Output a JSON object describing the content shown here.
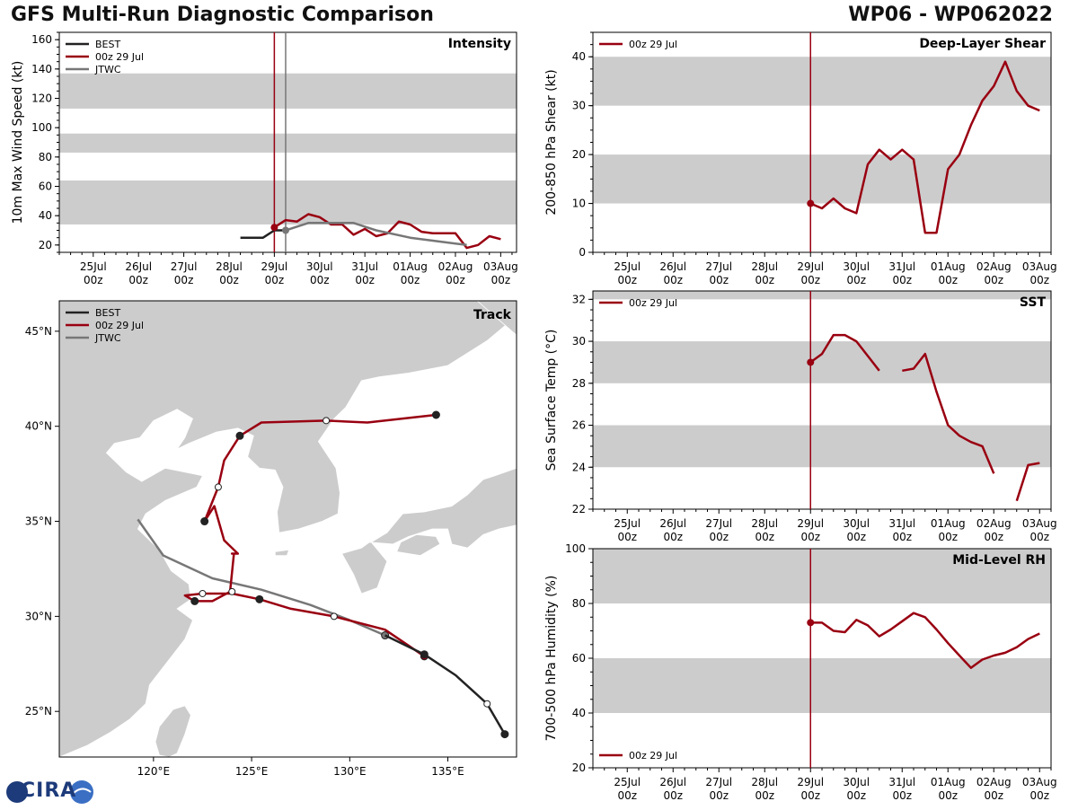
{
  "title_left": "GFS Multi-Run Diagnostic Comparison",
  "title_right": "WP06 - WP062022",
  "logo_text": "CIRA",
  "colors": {
    "best": "#222222",
    "run": "#990011",
    "jtwc": "#777777",
    "band": "#cccccc",
    "land": "#cccccc"
  },
  "chart_data": [
    {
      "id": "intensity",
      "type": "line",
      "title": "Intensity",
      "ylabel": "10m Max Wind Speed (kt)",
      "ylim": [
        15,
        165
      ],
      "yticks": [
        20,
        40,
        60,
        80,
        100,
        120,
        140,
        160
      ],
      "x_range": [
        -4.75,
        5.35
      ],
      "x_tick_dates": [
        "25Jul",
        "26Jul",
        "27Jul",
        "28Jul",
        "29Jul",
        "30Jul",
        "31Jul",
        "01Aug",
        "02Aug",
        "03Aug"
      ],
      "x_tick_hours": [
        "00z",
        "00z",
        "00z",
        "00z",
        "00z",
        "00z",
        "00z",
        "00z",
        "00z",
        "00z"
      ],
      "bands": [
        [
          34,
          64
        ],
        [
          83,
          96
        ],
        [
          113,
          137
        ]
      ],
      "vlines": [
        {
          "x": 0,
          "series": "run"
        },
        {
          "x": 0.25,
          "series": "jtwc"
        }
      ],
      "legend": [
        "BEST",
        "00z 29 Jul",
        "JTWC"
      ],
      "series": [
        {
          "name": "BEST",
          "key": "best",
          "x": [
            -0.75,
            -0.5,
            -0.25,
            0,
            0.25
          ],
          "y": [
            25,
            25,
            25,
            30,
            30
          ]
        },
        {
          "name": "00z 29 Jul",
          "key": "run",
          "x": [
            0,
            0.25,
            0.5,
            0.75,
            1,
            1.25,
            1.5,
            1.75,
            2,
            2.25,
            2.5,
            2.75,
            3,
            3.25,
            3.5,
            3.75,
            4,
            4.25,
            4.5,
            4.75,
            5
          ],
          "y": [
            32,
            37,
            36,
            41,
            39,
            34,
            34,
            27,
            31,
            26,
            28,
            36,
            34,
            29,
            28,
            28,
            28,
            18,
            20,
            26,
            24
          ],
          "marker_first": true
        },
        {
          "name": "JTWC",
          "key": "jtwc",
          "x": [
            0.25,
            0.75,
            1.25,
            1.75,
            2.25,
            3,
            3.75,
            4.25
          ],
          "y": [
            30,
            35,
            35,
            35,
            30,
            25,
            22,
            20
          ],
          "marker_first": true
        }
      ]
    },
    {
      "id": "shear",
      "type": "line",
      "title": "Deep-Layer Shear",
      "ylabel": "200-850 hPa Shear (kt)",
      "ylim": [
        0,
        45
      ],
      "yticks": [
        0,
        10,
        20,
        30,
        40
      ],
      "x_range": [
        -4.75,
        5.25
      ],
      "x_tick_dates": [
        "25Jul",
        "26Jul",
        "27Jul",
        "28Jul",
        "29Jul",
        "30Jul",
        "31Jul",
        "01Aug",
        "02Aug",
        "03Aug"
      ],
      "x_tick_hours": [
        "00z",
        "00z",
        "00z",
        "00z",
        "00z",
        "00z",
        "00z",
        "00z",
        "00z",
        "00z"
      ],
      "bands": [
        [
          10,
          20
        ],
        [
          30,
          40
        ]
      ],
      "vlines": [
        {
          "x": 0,
          "series": "run"
        }
      ],
      "legend": [
        "00z 29 Jul"
      ],
      "series": [
        {
          "name": "00z 29 Jul",
          "key": "run",
          "x": [
            0,
            0.25,
            0.5,
            0.75,
            1,
            1.25,
            1.5,
            1.75,
            2,
            2.25,
            2.5,
            2.75,
            3,
            3.25,
            3.5,
            3.75,
            4,
            4.25,
            4.5,
            4.75,
            5
          ],
          "y": [
            10,
            9,
            11,
            9,
            8,
            18,
            21,
            19,
            21,
            19,
            4,
            4,
            17,
            20,
            26,
            31,
            34,
            39,
            33,
            30,
            29
          ],
          "marker_first": true
        }
      ]
    },
    {
      "id": "sst",
      "type": "line",
      "title": "SST",
      "ylabel": "Sea Surface Temp (°C)",
      "ylim": [
        22,
        32.4
      ],
      "yticks": [
        22,
        24,
        26,
        28,
        30,
        32
      ],
      "x_range": [
        -4.75,
        5.25
      ],
      "x_tick_dates": [
        "25Jul",
        "26Jul",
        "27Jul",
        "28Jul",
        "29Jul",
        "30Jul",
        "31Jul",
        "01Aug",
        "02Aug",
        "03Aug"
      ],
      "x_tick_hours": [
        "00z",
        "00z",
        "00z",
        "00z",
        "00z",
        "00z",
        "00z",
        "00z",
        "00z",
        "00z"
      ],
      "bands": [
        [
          24,
          26
        ],
        [
          28,
          30
        ],
        [
          32,
          33
        ]
      ],
      "vlines": [
        {
          "x": 0,
          "series": "run"
        }
      ],
      "legend": [
        "00z 29 Jul"
      ],
      "series": [
        {
          "name": "00z 29 Jul",
          "key": "run",
          "segments": [
            {
              "x": [
                0,
                0.25,
                0.5,
                0.75,
                1,
                1.25,
                1.5
              ],
              "y": [
                29,
                29.4,
                30.3,
                30.3,
                30,
                29.3,
                28.6
              ]
            },
            {
              "x": [
                2,
                2.25,
                2.5,
                2.75,
                3,
                3.25,
                3.5,
                3.75,
                4
              ],
              "y": [
                28.6,
                28.7,
                29.4,
                27.6,
                26,
                25.5,
                25.2,
                25,
                23.7
              ]
            },
            {
              "x": [
                4.5,
                4.75,
                5
              ],
              "y": [
                22.4,
                24.1,
                24.2
              ]
            }
          ],
          "marker_first": true
        }
      ]
    },
    {
      "id": "rh",
      "type": "line",
      "title": "Mid-Level RH",
      "ylabel": "700-500 hPa Humidity (%)",
      "ylim": [
        20,
        100
      ],
      "yticks": [
        20,
        40,
        60,
        80,
        100
      ],
      "x_range": [
        -4.75,
        5.25
      ],
      "x_tick_dates": [
        "25Jul",
        "26Jul",
        "27Jul",
        "28Jul",
        "29Jul",
        "30Jul",
        "31Jul",
        "01Aug",
        "02Aug",
        "03Aug"
      ],
      "x_tick_hours": [
        "00z",
        "00z",
        "00z",
        "00z",
        "00z",
        "00z",
        "00z",
        "00z",
        "00z",
        "00z"
      ],
      "bands": [
        [
          40,
          60
        ],
        [
          80,
          100
        ]
      ],
      "vlines": [
        {
          "x": 0,
          "series": "run"
        }
      ],
      "legend": [
        "00z 29 Jul"
      ],
      "legend_position": "bottom-left",
      "series": [
        {
          "name": "00z 29 Jul",
          "key": "run",
          "x": [
            0,
            0.25,
            0.5,
            0.75,
            1,
            1.25,
            1.5,
            1.75,
            2,
            2.25,
            2.5,
            2.75,
            3,
            3.25,
            3.5,
            3.75,
            4,
            4.25,
            4.5,
            4.75,
            5
          ],
          "y": [
            73,
            73,
            70,
            69.5,
            74,
            72,
            68,
            70.5,
            73.5,
            76.5,
            75,
            70.5,
            65.5,
            61,
            56.5,
            59.5,
            61,
            62,
            64,
            67,
            69
          ],
          "marker_first": true
        }
      ]
    },
    {
      "id": "track",
      "type": "scatter",
      "title": "Track",
      "xlabel": "Longitude",
      "ylabel": "Latitude",
      "xlim": [
        115.2,
        138.5
      ],
      "ylim": [
        22.6,
        46.6
      ],
      "xticks": [
        120,
        125,
        130,
        135
      ],
      "xtick_labels": [
        "120°E",
        "125°E",
        "130°E",
        "135°E"
      ],
      "yticks": [
        25,
        30,
        35,
        40,
        45
      ],
      "ytick_labels": [
        "25°N",
        "30°N",
        "35°N",
        "40°N",
        "45°N"
      ],
      "legend": [
        "BEST",
        "00z 29 Jul",
        "JTWC"
      ],
      "series": [
        {
          "name": "BEST",
          "key": "best",
          "lon": [
            137.9,
            137.0,
            135.4,
            133.8,
            131.8
          ],
          "lat": [
            23.8,
            25.4,
            26.9,
            28.0,
            29.0
          ],
          "markers": [
            {
              "lon": 137.9,
              "lat": 23.8,
              "filled": true
            },
            {
              "lon": 137.0,
              "lat": 25.4,
              "filled": false
            },
            {
              "lon": 133.8,
              "lat": 28.0,
              "filled": true
            }
          ]
        },
        {
          "name": "00z 29 Jul",
          "key": "run",
          "lon": [
            133.8,
            131.8,
            129.2,
            127.0,
            125.4,
            124.0,
            122.5,
            121.6,
            122.1,
            123.0,
            123.9,
            124.1,
            124.0,
            124.2,
            124.3,
            123.6,
            123.1,
            122.6,
            123.3,
            123.6,
            124.4,
            125.5,
            128.8,
            130.9,
            134.4
          ],
          "lat": [
            27.9,
            29.3,
            30.0,
            30.4,
            30.9,
            31.2,
            31.2,
            31.1,
            30.8,
            30.8,
            31.3,
            33.3,
            33.3,
            33.3,
            33.3,
            34.0,
            35.8,
            35.0,
            36.8,
            38.2,
            39.5,
            40.2,
            40.3,
            40.2,
            40.6
          ],
          "markers": [
            {
              "lon": 133.8,
              "lat": 27.9,
              "filled": true
            },
            {
              "lon": 129.2,
              "lat": 30.0,
              "filled": false
            },
            {
              "lon": 125.4,
              "lat": 30.9,
              "filled": true
            },
            {
              "lon": 124.0,
              "lat": 31.3,
              "filled": false
            },
            {
              "lon": 122.5,
              "lat": 31.2,
              "filled": false
            },
            {
              "lon": 122.1,
              "lat": 30.8,
              "filled": true
            },
            {
              "lon": 122.6,
              "lat": 35.0,
              "filled": true
            },
            {
              "lon": 123.3,
              "lat": 36.8,
              "filled": false
            },
            {
              "lon": 124.4,
              "lat": 39.5,
              "filled": true
            },
            {
              "lon": 128.8,
              "lat": 40.3,
              "filled": false
            },
            {
              "lon": 134.4,
              "lat": 40.6,
              "filled": true
            }
          ]
        },
        {
          "name": "JTWC",
          "key": "jtwc",
          "lon": [
            131.8,
            130.0,
            128.0,
            125.5,
            123.0,
            120.5,
            119.2
          ],
          "lat": [
            29.0,
            29.8,
            30.6,
            31.4,
            32.0,
            33.2,
            35.1
          ],
          "markers": [
            {
              "lon": 131.8,
              "lat": 29.0,
              "filled": true
            }
          ]
        }
      ]
    }
  ]
}
